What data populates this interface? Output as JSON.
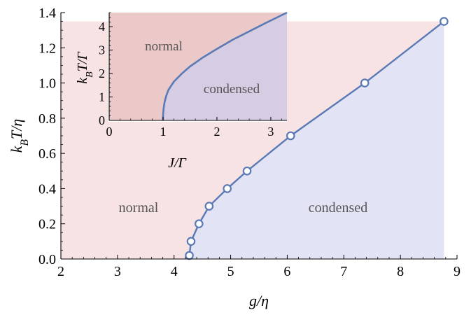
{
  "chart_data": [
    {
      "type": "line",
      "role": "main",
      "xlabel": "g/η",
      "ylabel": "k_B T/η",
      "xlim": [
        2,
        9
      ],
      "ylim": [
        0,
        1.4
      ],
      "x_ticks": [
        "2",
        "3",
        "4",
        "5",
        "6",
        "7",
        "8",
        "9"
      ],
      "y_ticks": [
        "0.0",
        "0.2",
        "0.4",
        "0.6",
        "0.8",
        "1.0",
        "1.2",
        "1.4"
      ],
      "x_tick_values": [
        2,
        3,
        4,
        5,
        6,
        7,
        8,
        9
      ],
      "y_tick_values": [
        0,
        0.2,
        0.4,
        0.6,
        0.8,
        1.0,
        1.2,
        1.4
      ],
      "regions": [
        {
          "label": "normal",
          "color": "#f7e3e3"
        },
        {
          "label": "condensed",
          "color": "#e3e3f6"
        }
      ],
      "series": [
        {
          "x": [
            4.27,
            4.3,
            4.44,
            4.62,
            4.94,
            5.29,
            6.06,
            7.37,
            8.77
          ],
          "y": [
            0.02,
            0.1,
            0.2,
            0.3,
            0.4,
            0.5,
            0.7,
            1.0,
            1.35
          ],
          "color": "#5a7ab5",
          "marker": "open-circle"
        }
      ],
      "grid": false
    },
    {
      "type": "line",
      "role": "inset",
      "xlabel": "J/Γ",
      "ylabel": "k_B T/Γ",
      "xlim": [
        0,
        3.3
      ],
      "ylim": [
        0,
        4.6
      ],
      "x_ticks": [
        "0",
        "1",
        "2",
        "3"
      ],
      "y_ticks": [
        "0",
        "1",
        "2",
        "3",
        "4"
      ],
      "x_tick_values": [
        0,
        1,
        2,
        3
      ],
      "y_tick_values": [
        0,
        1,
        2,
        3,
        4
      ],
      "regions": [
        {
          "label": "normal",
          "color": "#ecc9c9"
        },
        {
          "label": "condensed",
          "color": "#d6cce3"
        }
      ],
      "series": [
        {
          "x": [
            1.0,
            1.0,
            1.01,
            1.03,
            1.06,
            1.1,
            1.2,
            1.35,
            1.5,
            1.75,
            2.0,
            2.3,
            2.6,
            2.9,
            3.3
          ],
          "y": [
            0.0,
            0.2,
            0.5,
            0.8,
            1.05,
            1.3,
            1.65,
            2.0,
            2.3,
            2.7,
            3.05,
            3.45,
            3.8,
            4.15,
            4.6
          ],
          "color": "#5a7ab5"
        }
      ],
      "grid": false
    }
  ]
}
